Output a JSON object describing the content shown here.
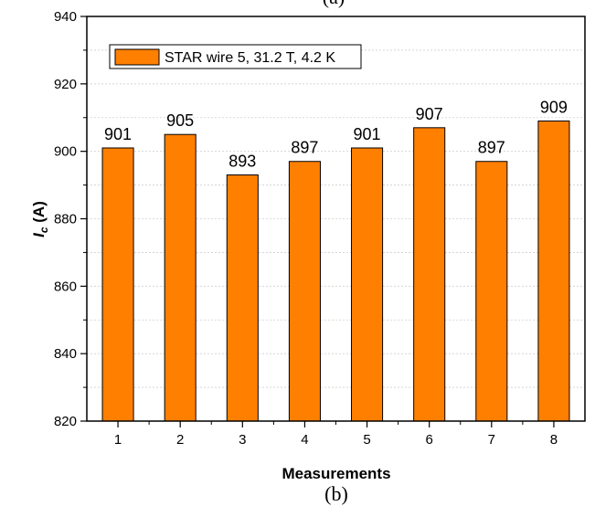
{
  "chart_data": {
    "type": "bar",
    "categories": [
      "1",
      "2",
      "3",
      "4",
      "5",
      "6",
      "7",
      "8"
    ],
    "series": [
      {
        "name": "STAR wire 5, 31.2 T, 4.2 K",
        "values": [
          901,
          905,
          893,
          897,
          901,
          907,
          897,
          909
        ],
        "color": "#ff7f00"
      }
    ],
    "data_labels": [
      "901",
      "905",
      "893",
      "897",
      "901",
      "907",
      "897",
      "909"
    ],
    "xlabel": "Measurements",
    "ylabel_main": "I",
    "ylabel_sub": "c",
    "ylabel_unit": " (A)",
    "ylim": [
      820,
      940
    ],
    "yticks": [
      820,
      840,
      860,
      880,
      900,
      920,
      940
    ],
    "ytick_labels": [
      "820",
      "840",
      "860",
      "880",
      "900",
      "920",
      "940"
    ],
    "grid": "horizontal dashed",
    "legend_position": "top-left",
    "caption": "(b)",
    "top_fragment": "(a)"
  }
}
